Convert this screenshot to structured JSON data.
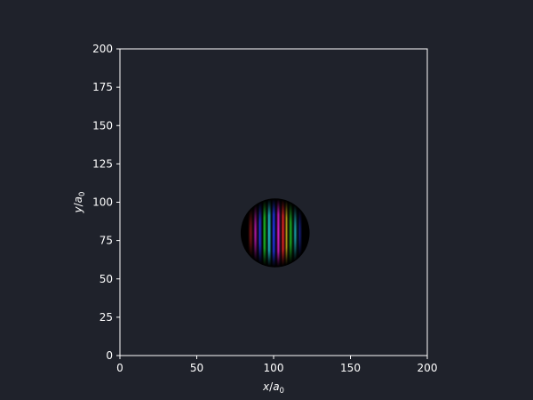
{
  "chart_data": {
    "type": "heatmap",
    "title": "",
    "xlabel": {
      "var": "x",
      "unit": "a",
      "unit_sub": "0"
    },
    "ylabel": {
      "var": "y",
      "unit": "a",
      "unit_sub": "0"
    },
    "xlim": [
      0,
      200
    ],
    "ylim": [
      0,
      200
    ],
    "xticks": [
      0,
      50,
      100,
      150,
      200
    ],
    "yticks": [
      0,
      25,
      50,
      75,
      100,
      125,
      150,
      175,
      200
    ],
    "grid": false,
    "legend": "none",
    "colors": {
      "background": "#1f222b",
      "axes_face": "#1f222b",
      "spines": "#ffffff",
      "text": "#ffffff"
    },
    "wavepacket": {
      "center": [
        101,
        80
      ],
      "radius": 22,
      "phase_coloring": "hsv-complex",
      "band_hues": [
        {
          "x": 85,
          "hue": "red"
        },
        {
          "x": 88,
          "hue": "magenta"
        },
        {
          "x": 91,
          "hue": "blue"
        },
        {
          "x": 94,
          "hue": "green"
        },
        {
          "x": 97,
          "hue": "cyan"
        },
        {
          "x": 100,
          "hue": "blue"
        },
        {
          "x": 103,
          "hue": "magenta"
        },
        {
          "x": 106,
          "hue": "red"
        },
        {
          "x": 108,
          "hue": "yellow"
        },
        {
          "x": 111,
          "hue": "green"
        },
        {
          "x": 114,
          "hue": "cyan"
        },
        {
          "x": 117,
          "hue": "blue"
        }
      ]
    }
  }
}
